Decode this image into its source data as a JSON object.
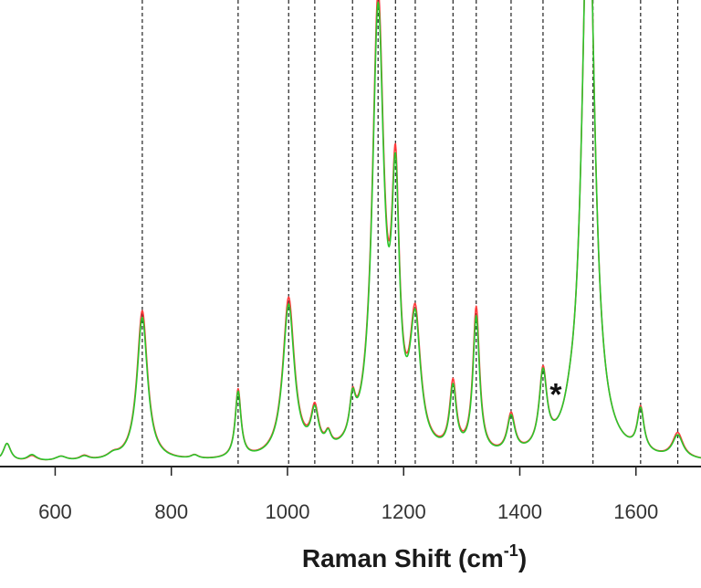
{
  "chart_data": {
    "type": "line",
    "title": "",
    "xlabel": "Raman Shift (cm",
    "xlabel_superscript": "-1",
    "xlabel_close": ")",
    "ylabel": "",
    "xlim": [
      505,
      1712
    ],
    "ylim": [
      0,
      1
    ],
    "grid": false,
    "x_ticks": [
      600,
      800,
      1000,
      1200,
      1400,
      1600
    ],
    "x_tick_labels": [
      "600",
      "800",
      "1000",
      "1200",
      "1400",
      "1600"
    ],
    "reference_lines": [
      750,
      915,
      1002,
      1047,
      1112,
      1156,
      1186,
      1220,
      1285,
      1325,
      1385,
      1440,
      1526,
      1608,
      1672
    ],
    "annotations": [
      {
        "text": "*",
        "x": 1462,
        "y": 0.175
      }
    ],
    "series": [
      {
        "color": "#ff3b3b",
        "peaks": [
          [
            517,
            0.04,
            8
          ],
          [
            560,
            0.012,
            10
          ],
          [
            610,
            0.01,
            12
          ],
          [
            650,
            0.01,
            10
          ],
          [
            700,
            0.01,
            12
          ],
          [
            750,
            0.33,
            11
          ],
          [
            840,
            0.008,
            8
          ],
          [
            915,
            0.15,
            6
          ],
          [
            1002,
            0.35,
            12
          ],
          [
            1047,
            0.09,
            8
          ],
          [
            1070,
            0.03,
            6
          ],
          [
            1112,
            0.08,
            6
          ],
          [
            1156,
            0.985,
            12
          ],
          [
            1186,
            0.53,
            8
          ],
          [
            1220,
            0.28,
            11
          ],
          [
            1285,
            0.15,
            7
          ],
          [
            1325,
            0.32,
            7
          ],
          [
            1385,
            0.085,
            8
          ],
          [
            1440,
            0.17,
            8
          ],
          [
            1486,
            0.02,
            12
          ],
          [
            1518,
            1.3,
            13
          ],
          [
            1608,
            0.095,
            7
          ],
          [
            1672,
            0.055,
            11
          ]
        ]
      },
      {
        "color": "#2bc52b",
        "peaks": [
          [
            517,
            0.04,
            8
          ],
          [
            560,
            0.014,
            10
          ],
          [
            610,
            0.01,
            12
          ],
          [
            650,
            0.009,
            10
          ],
          [
            700,
            0.01,
            12
          ],
          [
            750,
            0.315,
            11
          ],
          [
            840,
            0.008,
            8
          ],
          [
            915,
            0.145,
            6
          ],
          [
            1002,
            0.335,
            12
          ],
          [
            1047,
            0.085,
            8
          ],
          [
            1070,
            0.03,
            6
          ],
          [
            1112,
            0.08,
            6
          ],
          [
            1156,
            0.96,
            12
          ],
          [
            1186,
            0.515,
            8
          ],
          [
            1220,
            0.27,
            11
          ],
          [
            1285,
            0.14,
            7
          ],
          [
            1325,
            0.3,
            7
          ],
          [
            1385,
            0.08,
            8
          ],
          [
            1440,
            0.165,
            8
          ],
          [
            1486,
            0.02,
            12
          ],
          [
            1518,
            1.3,
            13
          ],
          [
            1608,
            0.092,
            7
          ],
          [
            1672,
            0.05,
            11
          ]
        ]
      }
    ]
  }
}
